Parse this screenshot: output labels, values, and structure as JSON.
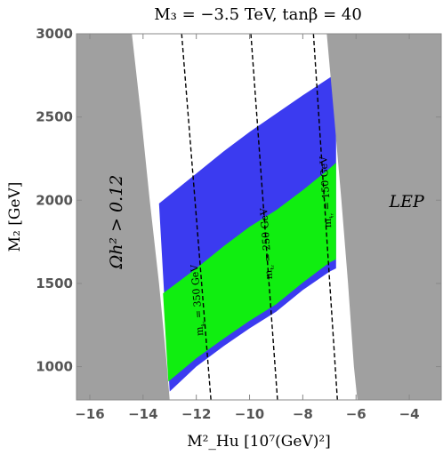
{
  "chart_data": {
    "type": "area",
    "title": "M₃ = −3.5 TeV, tanβ = 40",
    "xlabel": "M²_Hu [10⁷(GeV)²]",
    "ylabel": "M₂ [GeV]",
    "xlim": [
      -16.5,
      -2.8
    ],
    "ylim": [
      800,
      3000
    ],
    "x_ticks": [
      -16,
      -14,
      -12,
      -10,
      -8,
      -6,
      -4
    ],
    "y_ticks": [
      1000,
      1500,
      2000,
      2500,
      3000
    ],
    "x_tick_labels": [
      "−16",
      "−14",
      "−12",
      "−10",
      "−8",
      "−6",
      "−4"
    ],
    "y_tick_labels": [
      "1000",
      "1500",
      "2000",
      "2500",
      "3000"
    ],
    "colors": {
      "excluded": "#a0a0a0",
      "blue_band": "#3b3bf0",
      "green_band": "#10ee10",
      "background": "#ffffff"
    },
    "regions": [
      {
        "label": "Ωh² > 0.12",
        "color": "excluded",
        "boundary": [
          [
            -14.42,
            3000
          ],
          [
            -14.07,
            2500
          ],
          [
            -13.75,
            2000
          ],
          [
            -13.4,
            1500
          ],
          [
            -13.1,
            1000
          ],
          [
            -13.0,
            800
          ]
        ]
      },
      {
        "label": "LEP",
        "color": "excluded",
        "boundary": [
          [
            -7.1,
            3000
          ],
          [
            -6.82,
            2500
          ],
          [
            -6.55,
            2000
          ],
          [
            -6.3,
            1500
          ],
          [
            -6.08,
            1000
          ],
          [
            -5.95,
            800
          ]
        ]
      }
    ],
    "bands": [
      {
        "color": "blue_band",
        "lower": [
          [
            -13.0,
            850
          ],
          [
            -12.0,
            1000
          ],
          [
            -11.0,
            1120
          ],
          [
            -10.0,
            1230
          ],
          [
            -9.0,
            1330
          ],
          [
            -8.0,
            1460
          ],
          [
            -7.0,
            1570
          ],
          [
            -6.75,
            1590
          ]
        ],
        "upper": [
          [
            -13.4,
            1980
          ],
          [
            -12.0,
            2160
          ],
          [
            -11.0,
            2290
          ],
          [
            -10.0,
            2410
          ],
          [
            -9.0,
            2520
          ],
          [
            -8.0,
            2630
          ],
          [
            -7.0,
            2735
          ],
          [
            -6.75,
            2760
          ]
        ]
      },
      {
        "color": "green_band",
        "lower": [
          [
            -13.05,
            910
          ],
          [
            -12.0,
            1050
          ],
          [
            -11.0,
            1165
          ],
          [
            -10.0,
            1275
          ],
          [
            -9.0,
            1375
          ],
          [
            -8.0,
            1505
          ],
          [
            -7.0,
            1625
          ],
          [
            -6.75,
            1645
          ]
        ],
        "upper": [
          [
            -13.25,
            1440
          ],
          [
            -12.0,
            1590
          ],
          [
            -11.0,
            1720
          ],
          [
            -10.0,
            1840
          ],
          [
            -9.0,
            1940
          ],
          [
            -8.0,
            2060
          ],
          [
            -7.0,
            2190
          ],
          [
            -6.75,
            2225
          ]
        ]
      }
    ],
    "contours": [
      {
        "label": "mᵼᵣ = 350 GeV",
        "label_main": "m",
        "label_sub": "ᵼᵣ",
        "label_value": " = 350 GeV",
        "points": [
          [
            -12.55,
            3000
          ],
          [
            -11.45,
            800
          ]
        ]
      },
      {
        "label": "mᵼᵣ = 250 GeV",
        "label_main": "m",
        "label_sub": "ᵼᵣ",
        "label_value": " = 250 GeV",
        "points": [
          [
            -9.95,
            3000
          ],
          [
            -8.95,
            800
          ]
        ]
      },
      {
        "label": "mᵼᵣ = 150 GeV",
        "label_main": "m",
        "label_sub": "ᵼᵣ",
        "label_value": " = 150 GeV",
        "points": [
          [
            -7.6,
            3000
          ],
          [
            -6.7,
            800
          ]
        ]
      }
    ],
    "grid": false,
    "legend": "none"
  }
}
